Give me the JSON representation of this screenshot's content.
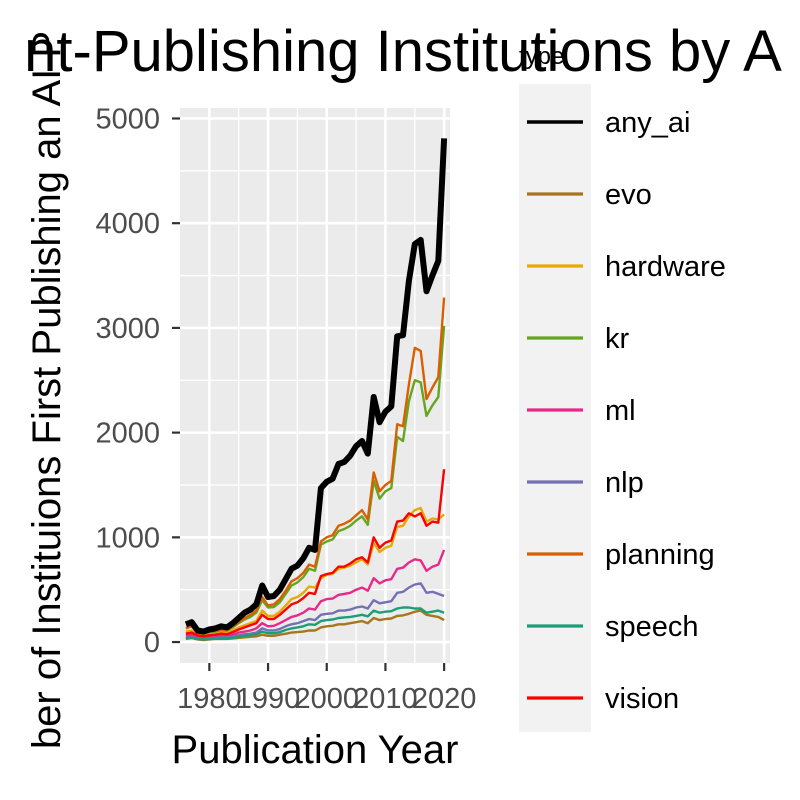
{
  "chart_data": {
    "type": "line",
    "title": "nt-Publishing Institutions by A",
    "xlabel": "Publication Year",
    "ylabel": "ber of Instituions First Publishing an AI P",
    "x_ticks": [
      "1980",
      "1990",
      "2000",
      "2010",
      "2020"
    ],
    "y_ticks": [
      "0",
      "1000",
      "2000",
      "3000",
      "4000",
      "5000"
    ],
    "xlim": [
      1975,
      2021
    ],
    "ylim": [
      -200,
      5100
    ],
    "grid": true,
    "legend": {
      "title": "type",
      "position": "right"
    },
    "x": [
      1976,
      1977,
      1978,
      1979,
      1980,
      1981,
      1982,
      1983,
      1984,
      1985,
      1986,
      1987,
      1988,
      1989,
      1990,
      1991,
      1992,
      1993,
      1994,
      1995,
      1996,
      1997,
      1998,
      1999,
      2000,
      2001,
      2002,
      2003,
      2004,
      2005,
      2006,
      2007,
      2008,
      2009,
      2010,
      2011,
      2012,
      2013,
      2014,
      2015,
      2016,
      2017,
      2018,
      2019,
      2020
    ],
    "series": [
      {
        "name": "any_ai",
        "color": "#000000",
        "width": 6,
        "values": [
          170,
          190,
          110,
          100,
          120,
          130,
          150,
          140,
          180,
          230,
          280,
          310,
          360,
          540,
          430,
          440,
          500,
          600,
          700,
          730,
          800,
          900,
          880,
          1470,
          1530,
          1560,
          1700,
          1720,
          1780,
          1870,
          1920,
          1800,
          2340,
          2100,
          2200,
          2250,
          2920,
          2930,
          3450,
          3800,
          3840,
          3350,
          3500,
          3640,
          4810
        ]
      },
      {
        "name": "evo",
        "color": "#a6761d",
        "width": 2.4,
        "values": [
          30,
          40,
          25,
          20,
          25,
          30,
          30,
          30,
          35,
          40,
          45,
          50,
          55,
          70,
          60,
          60,
          70,
          80,
          90,
          95,
          100,
          110,
          110,
          140,
          150,
          155,
          170,
          170,
          180,
          190,
          200,
          180,
          230,
          210,
          220,
          225,
          250,
          255,
          270,
          290,
          300,
          260,
          250,
          240,
          210
        ]
      },
      {
        "name": "hardware",
        "color": "#e6ab02",
        "width": 2.4,
        "values": [
          100,
          110,
          80,
          70,
          80,
          85,
          95,
          90,
          110,
          140,
          160,
          180,
          200,
          300,
          250,
          250,
          290,
          350,
          410,
          430,
          470,
          530,
          520,
          610,
          640,
          650,
          700,
          710,
          730,
          760,
          790,
          740,
          950,
          860,
          900,
          920,
          1100,
          1110,
          1200,
          1260,
          1280,
          1150,
          1180,
          1170,
          1220
        ]
      },
      {
        "name": "kr",
        "color": "#66a61e",
        "width": 2.4,
        "values": [
          130,
          150,
          90,
          80,
          95,
          100,
          115,
          110,
          140,
          180,
          215,
          240,
          280,
          400,
          330,
          335,
          380,
          460,
          540,
          570,
          620,
          700,
          680,
          930,
          960,
          980,
          1060,
          1080,
          1110,
          1160,
          1200,
          1120,
          1540,
          1370,
          1440,
          1470,
          1960,
          1920,
          2300,
          2500,
          2480,
          2160,
          2260,
          2340,
          3020
        ]
      },
      {
        "name": "ml",
        "color": "#e7298a",
        "width": 2.4,
        "values": [
          60,
          70,
          50,
          45,
          50,
          55,
          60,
          60,
          70,
          90,
          100,
          110,
          130,
          180,
          150,
          155,
          180,
          210,
          240,
          255,
          280,
          320,
          310,
          390,
          410,
          415,
          450,
          460,
          470,
          500,
          520,
          490,
          610,
          560,
          590,
          600,
          700,
          710,
          760,
          790,
          780,
          680,
          720,
          740,
          880
        ]
      },
      {
        "name": "nlp",
        "color": "#7570b3",
        "width": 2.4,
        "values": [
          40,
          50,
          35,
          30,
          35,
          40,
          45,
          45,
          50,
          65,
          75,
          80,
          90,
          130,
          110,
          110,
          125,
          150,
          170,
          180,
          200,
          220,
          210,
          260,
          270,
          275,
          300,
          300,
          310,
          330,
          340,
          320,
          400,
          370,
          380,
          390,
          470,
          480,
          520,
          550,
          560,
          470,
          480,
          460,
          440
        ]
      },
      {
        "name": "planning",
        "color": "#d95f02",
        "width": 2.4,
        "values": [
          130,
          150,
          95,
          85,
          100,
          110,
          120,
          115,
          150,
          190,
          230,
          260,
          300,
          430,
          350,
          360,
          410,
          490,
          580,
          610,
          660,
          740,
          720,
          960,
          1000,
          1020,
          1110,
          1130,
          1160,
          1210,
          1260,
          1170,
          1620,
          1440,
          1500,
          1540,
          2080,
          2060,
          2460,
          2810,
          2780,
          2320,
          2430,
          2530,
          3290
        ]
      },
      {
        "name": "speech",
        "color": "#1b9e77",
        "width": 2.4,
        "values": [
          35,
          40,
          30,
          25,
          30,
          35,
          35,
          35,
          40,
          50,
          60,
          65,
          75,
          100,
          85,
          85,
          95,
          115,
          130,
          140,
          150,
          170,
          165,
          200,
          210,
          215,
          230,
          235,
          240,
          250,
          260,
          245,
          300,
          280,
          290,
          295,
          320,
          330,
          330,
          320,
          320,
          280,
          290,
          300,
          280
        ]
      },
      {
        "name": "vision",
        "color": "#ff0000",
        "width": 2.4,
        "values": [
          80,
          90,
          65,
          55,
          65,
          70,
          80,
          75,
          95,
          120,
          140,
          160,
          180,
          260,
          220,
          220,
          260,
          310,
          360,
          380,
          420,
          470,
          460,
          630,
          650,
          660,
          720,
          720,
          750,
          790,
          810,
          760,
          1000,
          900,
          950,
          970,
          1150,
          1160,
          1230,
          1200,
          1230,
          1110,
          1150,
          1140,
          1650
        ]
      }
    ]
  }
}
